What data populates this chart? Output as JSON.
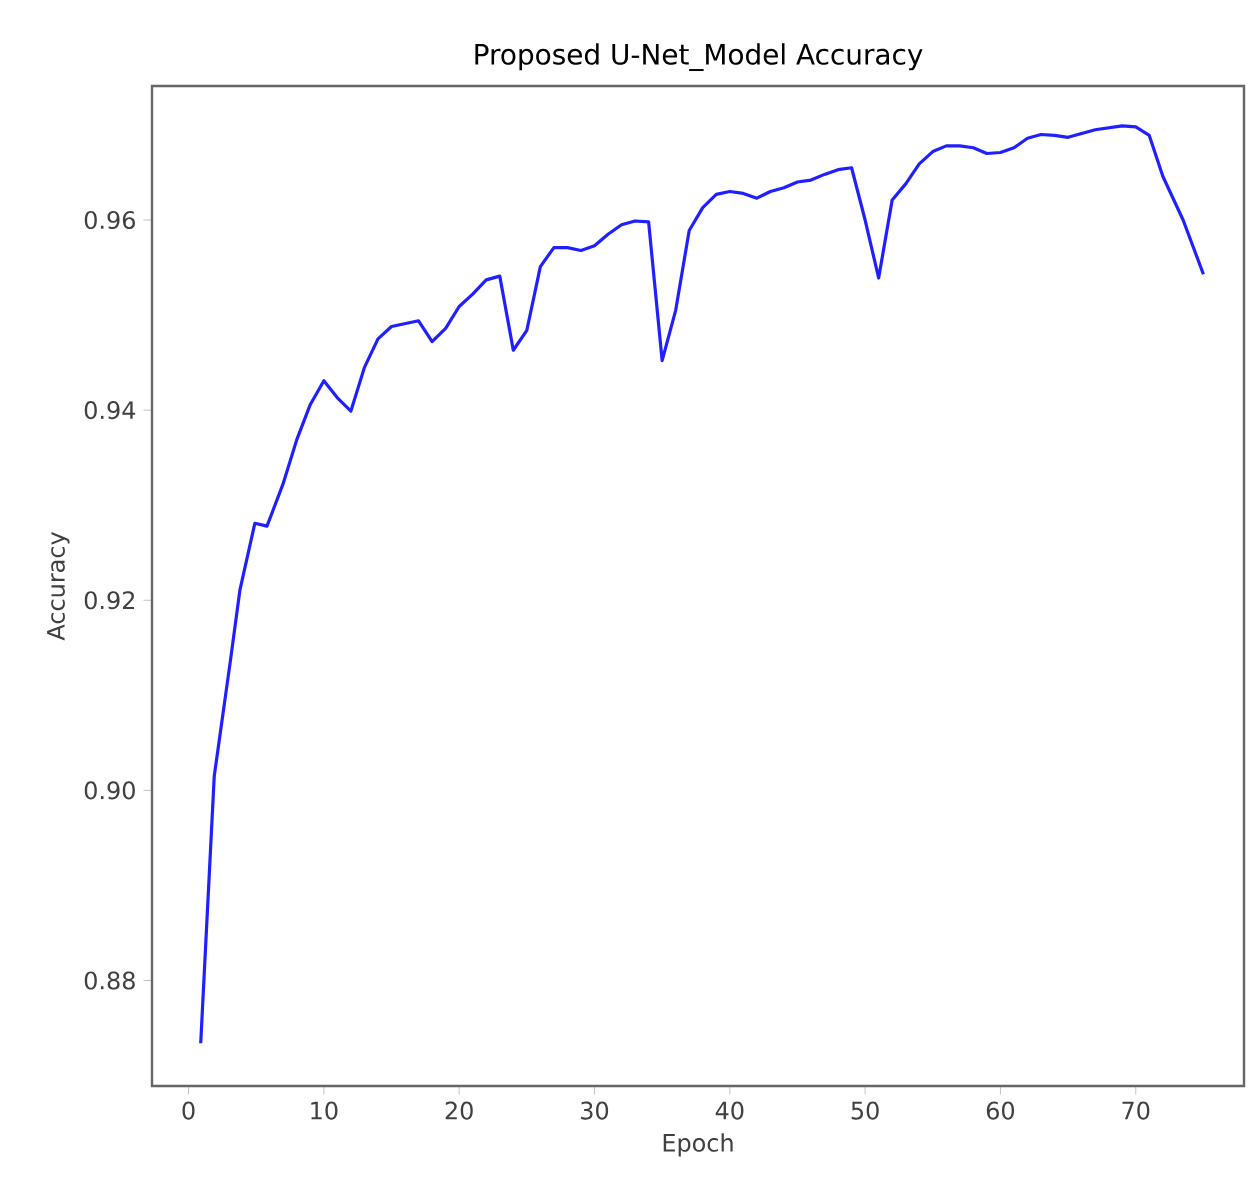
{
  "chart_data": {
    "type": "line",
    "title": "Proposed U-Net_Model Accuracy",
    "xlabel": "Epoch",
    "ylabel": "Accuracy",
    "x": [
      0.9,
      1.9,
      3.1,
      3.8,
      4.9,
      5.8,
      7.0,
      8.0,
      9.0,
      10.0,
      11.0,
      12.0,
      13.0,
      14.0,
      15.0,
      16.0,
      17.0,
      18.0,
      19.0,
      20.0,
      21.0,
      22.0,
      23.0,
      24.0,
      25.0,
      26.0,
      27.0,
      28.0,
      29.0,
      30.0,
      31.0,
      32.0,
      33.0,
      34.0,
      35.0,
      36.0,
      37.0,
      38.0,
      39.0,
      40.0,
      41.0,
      42.0,
      43.0,
      44.0,
      45.0,
      46.0,
      47.0,
      48.0,
      49.0,
      50.0,
      51.0,
      52.0,
      53.0,
      54.0,
      55.0,
      56.0,
      57.0,
      58.0,
      59.0,
      60.0,
      61.0,
      62.0,
      63.0,
      64.0,
      65.0,
      66.0,
      67.0,
      68.0,
      69.0,
      70.0,
      71.0,
      72.0,
      73.5,
      75.0
    ],
    "series": [
      {
        "color": "#1f1fff",
        "values": [
          0.8734,
          0.9015,
          0.9137,
          0.9211,
          0.9281,
          0.9278,
          0.9323,
          0.9369,
          0.9406,
          0.9431,
          0.9413,
          0.9399,
          0.9445,
          0.9475,
          0.9488,
          0.9491,
          0.9494,
          0.9472,
          0.9486,
          0.9509,
          0.9522,
          0.9537,
          0.9541,
          0.9463,
          0.9484,
          0.9551,
          0.9571,
          0.9571,
          0.9568,
          0.9573,
          0.9585,
          0.9595,
          0.9599,
          0.9598,
          0.9452,
          0.9505,
          0.9589,
          0.9613,
          0.9627,
          0.963,
          0.9628,
          0.9623,
          0.963,
          0.9634,
          0.964,
          0.9642,
          0.9648,
          0.9653,
          0.9655,
          0.96,
          0.9539,
          0.9621,
          0.9638,
          0.9659,
          0.9672,
          0.9678,
          0.9678,
          0.9676,
          0.967,
          0.9671,
          0.9676,
          0.9686,
          0.969,
          0.9689,
          0.9687,
          0.9691,
          0.9695,
          0.9697,
          0.9699,
          0.9698,
          0.9689,
          0.9646,
          0.96,
          0.9543
        ]
      }
    ],
    "xlim": [
      -2.7,
      78
    ],
    "ylim": [
      0.8689,
      0.9741
    ],
    "xticks": [
      0,
      10,
      20,
      30,
      40,
      50,
      60,
      70
    ],
    "yticks": [
      {
        "value": 0.88,
        "label": "0.88"
      },
      {
        "value": 0.9,
        "label": "0.90"
      },
      {
        "value": 0.92,
        "label": "0.92"
      },
      {
        "value": 0.94,
        "label": "0.94"
      },
      {
        "value": 0.96,
        "label": "0.96"
      }
    ],
    "grid": false,
    "marker": "none",
    "line_style": "solid"
  }
}
